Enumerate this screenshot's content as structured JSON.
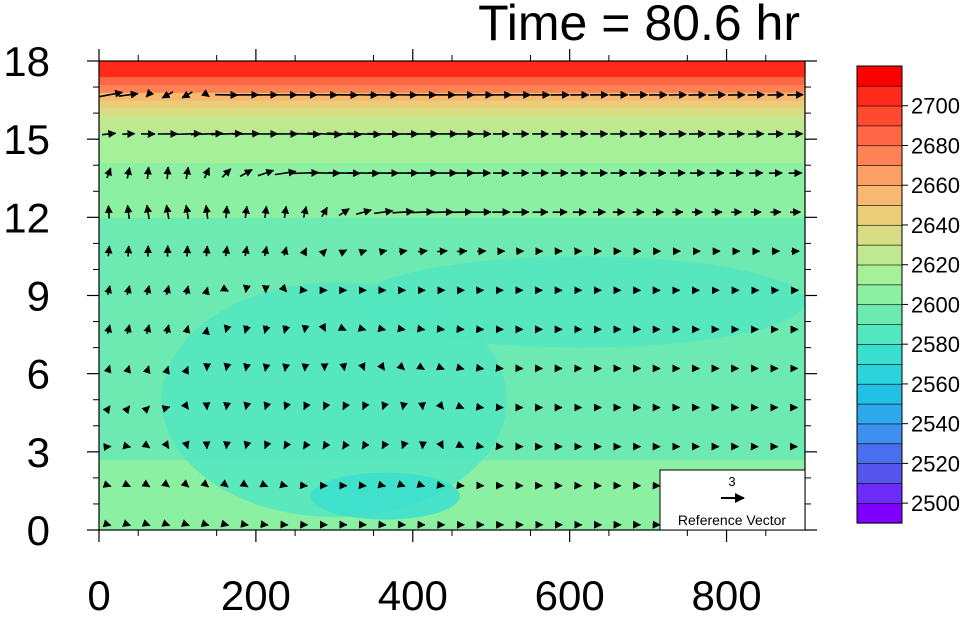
{
  "title": "Time = 80.6 hr",
  "chart_data": {
    "type": "heatmap",
    "title": "Time = 80.6 hr",
    "xlabel": "",
    "ylabel": "",
    "xlim": [
      0,
      900
    ],
    "ylim": [
      0,
      18
    ],
    "x_ticks": [
      0,
      200,
      400,
      600,
      800
    ],
    "y_ticks": [
      0,
      3,
      6,
      9,
      12,
      15,
      18
    ],
    "colorbar": {
      "labels": [
        2500,
        2520,
        2540,
        2560,
        2580,
        2600,
        2620,
        2640,
        2660,
        2680,
        2700
      ],
      "levels": [
        2490,
        2500,
        2510,
        2520,
        2530,
        2540,
        2550,
        2560,
        2570,
        2580,
        2590,
        2600,
        2610,
        2620,
        2630,
        2640,
        2650,
        2660,
        2670,
        2680,
        2690,
        2700,
        2710
      ],
      "colors": [
        "#7f00ff",
        "#6a2cf6",
        "#5555ee",
        "#4a6eee",
        "#3f8ff0",
        "#2ea7ec",
        "#22bfe4",
        "#2bd3dc",
        "#3bdfcf",
        "#52e6c1",
        "#6ceab1",
        "#8bf0a2",
        "#a6f09a",
        "#bfe890",
        "#d8dd84",
        "#ebcc78",
        "#f7b870",
        "#fd9e64",
        "#ff8255",
        "#ff6645",
        "#ff4a30",
        "#ff2a1a",
        "#ff0000"
      ]
    },
    "field_rows": [
      {
        "y": 17.5,
        "value": 2702
      },
      {
        "y": 16.8,
        "value": 2668
      },
      {
        "y": 16.2,
        "value": 2632
      },
      {
        "y": 14.5,
        "value": 2612
      },
      {
        "y": 11.0,
        "value": 2596
      },
      {
        "y": 8.0,
        "value": 2590
      },
      {
        "y": 4.0,
        "value": 2595
      },
      {
        "y": 1.0,
        "value": 2606
      }
    ],
    "field_features": [
      {
        "name": "lower-cool-pool",
        "x": [
          80,
          520
        ],
        "y": [
          0.5,
          9.5
        ],
        "value": 2588
      },
      {
        "name": "surface-cool-spot",
        "x": [
          270,
          460
        ],
        "y": [
          0.4,
          2.2
        ],
        "value": 2576
      },
      {
        "name": "mid-cool-band",
        "x": [
          330,
          900
        ],
        "y": [
          7.0,
          10.5
        ],
        "value": 2588
      }
    ],
    "vectors": {
      "grid_dx": 25,
      "grid_dy": 1.5,
      "samples": [
        {
          "x": 20,
          "y": 17.5,
          "u": 4.0,
          "v": 0.8
        },
        {
          "x": 100,
          "y": 16.8,
          "u": -1.5,
          "v": -0.8
        },
        {
          "x": 150,
          "y": 15.9,
          "u": 4.5,
          "v": 0.2
        },
        {
          "x": 220,
          "y": 15.8,
          "u": 3.0,
          "v": 0.0
        },
        {
          "x": 300,
          "y": 14.8,
          "u": 4.5,
          "v": -0.2
        },
        {
          "x": 420,
          "y": 14.5,
          "u": 4.0,
          "v": 0.0
        },
        {
          "x": 520,
          "y": 14.4,
          "u": 2.0,
          "v": 0.0
        },
        {
          "x": 100,
          "y": 12.5,
          "u": -0.3,
          "v": 1.8
        },
        {
          "x": 210,
          "y": 12.0,
          "u": 0.2,
          "v": 1.5
        },
        {
          "x": 80,
          "y": 8.5,
          "u": 0.3,
          "v": 1.2
        },
        {
          "x": 210,
          "y": 8.0,
          "u": -0.3,
          "v": -1.0
        },
        {
          "x": 300,
          "y": 9.0,
          "u": 0.6,
          "v": 0.0
        },
        {
          "x": 600,
          "y": 9.0,
          "u": 0.4,
          "v": 0.0
        },
        {
          "x": 300,
          "y": 3.0,
          "u": -0.4,
          "v": -0.6
        },
        {
          "x": 600,
          "y": 4.0,
          "u": 0.4,
          "v": 0.0
        },
        {
          "x": 300,
          "y": 1.3,
          "u": 0.7,
          "v": 0.0
        },
        {
          "x": 500,
          "y": 0.2,
          "u": 0.6,
          "v": 0.0
        }
      ]
    },
    "reference_vector": {
      "magnitude": "3",
      "label": "Reference Vector"
    },
    "grid": false
  }
}
